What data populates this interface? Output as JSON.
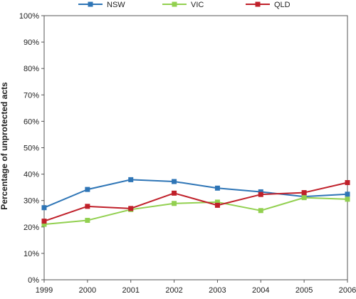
{
  "chart_data": {
    "type": "line",
    "title": "",
    "xlabel": "",
    "ylabel": "Percentage of unprotected acts",
    "categories": [
      "1999",
      "2000",
      "2001",
      "2002",
      "2003",
      "2004",
      "2005",
      "2006"
    ],
    "ylim": [
      0,
      100
    ],
    "yticks": [
      0,
      10,
      20,
      30,
      40,
      50,
      60,
      70,
      80,
      90,
      100
    ],
    "ytick_labels": [
      "0%",
      "10%",
      "20%",
      "30%",
      "40%",
      "50%",
      "60%",
      "70%",
      "80%",
      "90%",
      "100%"
    ],
    "grid": false,
    "legend_position": "top",
    "series": [
      {
        "name": "NSW",
        "color": "#2e75b6",
        "marker": "square",
        "values": [
          27.3,
          34.2,
          37.9,
          37.2,
          34.7,
          33.3,
          31.5,
          32.4
        ]
      },
      {
        "name": "VIC",
        "color": "#92d050",
        "marker": "square",
        "values": [
          21.0,
          22.5,
          26.6,
          28.9,
          29.4,
          26.2,
          31.1,
          30.5
        ]
      },
      {
        "name": "QLD",
        "color": "#c0202a",
        "marker": "square",
        "values": [
          22.2,
          27.8,
          27.0,
          32.8,
          28.2,
          32.3,
          33.0,
          36.8
        ]
      }
    ]
  }
}
